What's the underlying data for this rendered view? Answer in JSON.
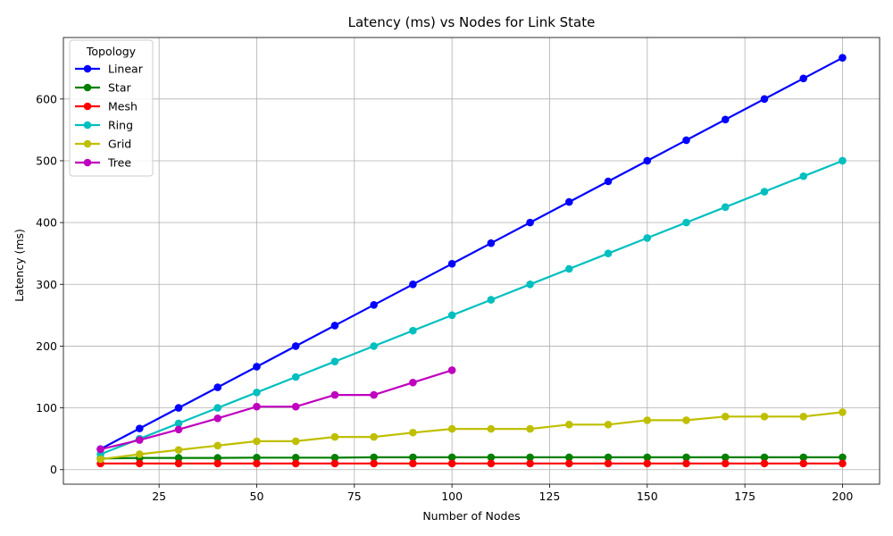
{
  "chart_data": {
    "type": "line",
    "title": "Latency (ms) vs Nodes for Link State",
    "xlabel": "Number of Nodes",
    "ylabel": "Latency (ms)",
    "xlim": [
      0.5,
      209.5
    ],
    "ylim": [
      -23.5,
      699.5
    ],
    "xticks": [
      25,
      50,
      75,
      100,
      125,
      150,
      175,
      200
    ],
    "yticks": [
      0,
      100,
      200,
      300,
      400,
      500,
      600
    ],
    "grid": true,
    "legend": {
      "title": "Topology",
      "placement": "top-left"
    },
    "series": [
      {
        "name": "Linear",
        "color": "#0000ff",
        "x": [
          10,
          20,
          30,
          40,
          50,
          60,
          70,
          80,
          90,
          100,
          110,
          120,
          130,
          140,
          150,
          160,
          170,
          180,
          190,
          200
        ],
        "y": [
          33.3,
          66.7,
          100,
          133.3,
          166.7,
          200,
          233.3,
          266.7,
          300,
          333.3,
          366.7,
          400,
          433.3,
          466.7,
          500,
          533.3,
          566.7,
          600,
          633.3,
          666.7
        ]
      },
      {
        "name": "Star",
        "color": "#008000",
        "x": [
          10,
          20,
          30,
          40,
          50,
          60,
          70,
          80,
          90,
          100,
          110,
          120,
          130,
          140,
          150,
          160,
          170,
          180,
          190,
          200
        ],
        "y": [
          18,
          19,
          19,
          19,
          19.5,
          19.5,
          19.5,
          20,
          20,
          20,
          20,
          20,
          20,
          20,
          20,
          20,
          20,
          20,
          20,
          20
        ]
      },
      {
        "name": "Mesh",
        "color": "#ff0000",
        "x": [
          10,
          20,
          30,
          40,
          50,
          60,
          70,
          80,
          90,
          100,
          110,
          120,
          130,
          140,
          150,
          160,
          170,
          180,
          190,
          200
        ],
        "y": [
          10,
          10,
          10,
          10,
          10,
          10,
          10,
          10,
          10,
          10,
          10,
          10,
          10,
          10,
          10,
          10,
          10,
          10,
          10,
          10
        ]
      },
      {
        "name": "Ring",
        "color": "#00bfbf",
        "x": [
          10,
          20,
          30,
          40,
          50,
          60,
          70,
          80,
          90,
          100,
          110,
          120,
          130,
          140,
          150,
          160,
          170,
          180,
          190,
          200
        ],
        "y": [
          25,
          50,
          75,
          100,
          125,
          150,
          175,
          200,
          225,
          250,
          275,
          300,
          325,
          350,
          375,
          400,
          425,
          450,
          475,
          500
        ]
      },
      {
        "name": "Grid",
        "color": "#bfbf00",
        "x": [
          10,
          20,
          30,
          40,
          50,
          60,
          70,
          80,
          90,
          100,
          110,
          120,
          130,
          140,
          150,
          160,
          170,
          180,
          190,
          200
        ],
        "y": [
          17,
          25,
          32,
          39,
          46,
          46,
          53,
          53,
          60,
          66,
          66,
          66,
          73,
          73,
          80,
          80,
          86,
          86,
          86,
          93
        ]
      },
      {
        "name": "Tree",
        "color": "#bf00bf",
        "x": [
          10,
          20,
          30,
          40,
          50,
          60,
          70,
          80,
          90,
          100
        ],
        "y": [
          33,
          48,
          65,
          83,
          102,
          102,
          121,
          121,
          141,
          161
        ]
      }
    ]
  }
}
